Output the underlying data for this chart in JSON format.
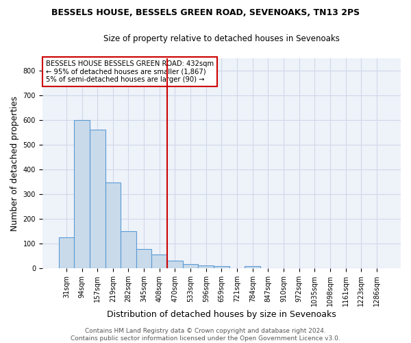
{
  "title1": "BESSELS HOUSE, BESSELS GREEN ROAD, SEVENOAKS, TN13 2PS",
  "title2": "Size of property relative to detached houses in Sevenoaks",
  "xlabel": "Distribution of detached houses by size in Sevenoaks",
  "ylabel": "Number of detached properties",
  "bar_labels": [
    "31sqm",
    "94sqm",
    "157sqm",
    "219sqm",
    "282sqm",
    "345sqm",
    "408sqm",
    "470sqm",
    "533sqm",
    "596sqm",
    "659sqm",
    "721sqm",
    "784sqm",
    "847sqm",
    "910sqm",
    "972sqm",
    "1035sqm",
    "1098sqm",
    "1161sqm",
    "1223sqm",
    "1286sqm"
  ],
  "bar_values": [
    125,
    600,
    560,
    348,
    150,
    77,
    55,
    32,
    18,
    13,
    10,
    0,
    8,
    0,
    0,
    0,
    0,
    0,
    0,
    0,
    0
  ],
  "bar_color": "#c9daea",
  "bar_edge_color": "#5b9bd5",
  "vline_pos": 6.5,
  "vline_color": "#cc0000",
  "annotation_text": "BESSELS HOUSE BESSELS GREEN ROAD: 432sqm\n← 95% of detached houses are smaller (1,867)\n5% of semi-detached houses are larger (90) →",
  "annotation_box_color": "#ffffff",
  "annotation_box_edge": "#cc0000",
  "footer_text": "Contains HM Land Registry data © Crown copyright and database right 2024.\nContains public sector information licensed under the Open Government Licence v3.0.",
  "ylim": [
    0,
    850
  ],
  "yticks": [
    0,
    100,
    200,
    300,
    400,
    500,
    600,
    700,
    800
  ],
  "grid_color": "#d0d8e8",
  "bg_color": "#eef2f9",
  "title1_fontsize": 9,
  "title2_fontsize": 8.5,
  "axis_label_fontsize": 9,
  "tick_fontsize": 7,
  "footer_fontsize": 6.5,
  "annotation_fontsize": 7.2
}
